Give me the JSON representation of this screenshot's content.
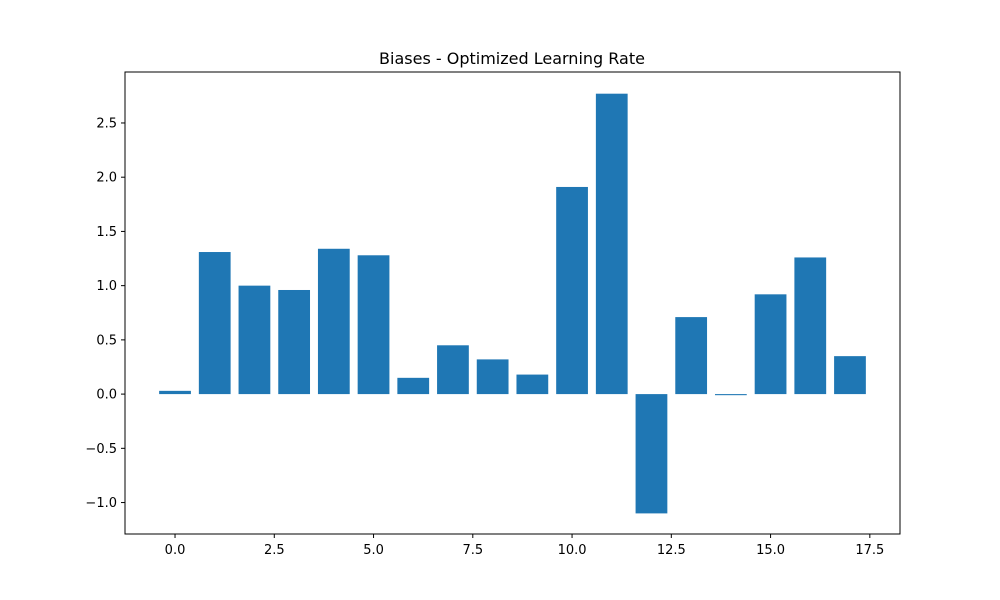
{
  "chart_data": {
    "type": "bar",
    "title": "Biases - Optimized Learning Rate",
    "xlabel": "",
    "ylabel": "",
    "x": [
      0,
      1,
      2,
      3,
      4,
      5,
      6,
      7,
      8,
      9,
      10,
      11,
      12,
      13,
      14,
      15,
      16,
      17
    ],
    "values": [
      0.03,
      1.31,
      1.0,
      0.96,
      1.34,
      1.28,
      0.15,
      0.45,
      0.32,
      0.18,
      1.91,
      2.77,
      -1.1,
      0.71,
      -0.01,
      0.92,
      1.26,
      0.35
    ],
    "xlim": [
      -1.26,
      18.26
    ],
    "ylim": [
      -1.29,
      2.97
    ],
    "xticks": [
      {
        "value": 0.0,
        "label": "0.0"
      },
      {
        "value": 2.5,
        "label": "2.5"
      },
      {
        "value": 5.0,
        "label": "5.0"
      },
      {
        "value": 7.5,
        "label": "7.5"
      },
      {
        "value": 10.0,
        "label": "10.0"
      },
      {
        "value": 12.5,
        "label": "12.5"
      },
      {
        "value": 15.0,
        "label": "15.0"
      },
      {
        "value": 17.5,
        "label": "17.5"
      }
    ],
    "yticks": [
      {
        "value": -1.0,
        "label": "−1.0"
      },
      {
        "value": -0.5,
        "label": "−0.5"
      },
      {
        "value": 0.0,
        "label": "0.0"
      },
      {
        "value": 0.5,
        "label": "0.5"
      },
      {
        "value": 1.0,
        "label": "1.0"
      },
      {
        "value": 1.5,
        "label": "1.5"
      },
      {
        "value": 2.0,
        "label": "2.0"
      },
      {
        "value": 2.5,
        "label": "2.5"
      }
    ],
    "bar_width": 0.8,
    "color": "#1f77b4",
    "grid": false,
    "legend": "none"
  }
}
